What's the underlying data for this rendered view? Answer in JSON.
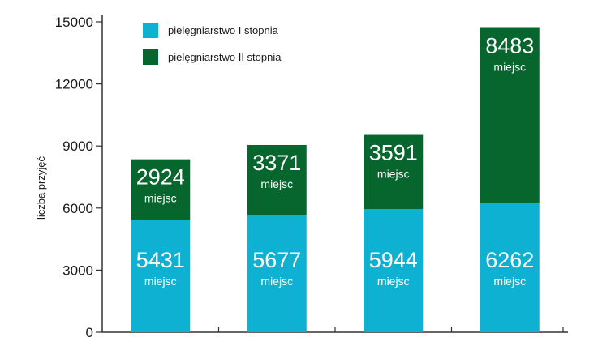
{
  "chart_data": {
    "type": "bar",
    "stacked": true,
    "categories": [
      "",
      "",
      "",
      ""
    ],
    "ylabel": "liczba przyjęć",
    "ylim": [
      0,
      15000
    ],
    "yticks": [
      "0",
      "3000",
      "6000",
      "9000",
      "12000",
      "15000"
    ],
    "unit_text": "miejsc",
    "legend_position": "top-left",
    "series": [
      {
        "name": "pielęgniarstwo I stopnia",
        "color": "#0fb1d3",
        "values": [
          5431,
          5677,
          5944,
          6262
        ]
      },
      {
        "name": "pielęgniarstwo II stopnia",
        "color": "#06662e",
        "values": [
          2924,
          3371,
          3591,
          8483
        ]
      }
    ]
  }
}
